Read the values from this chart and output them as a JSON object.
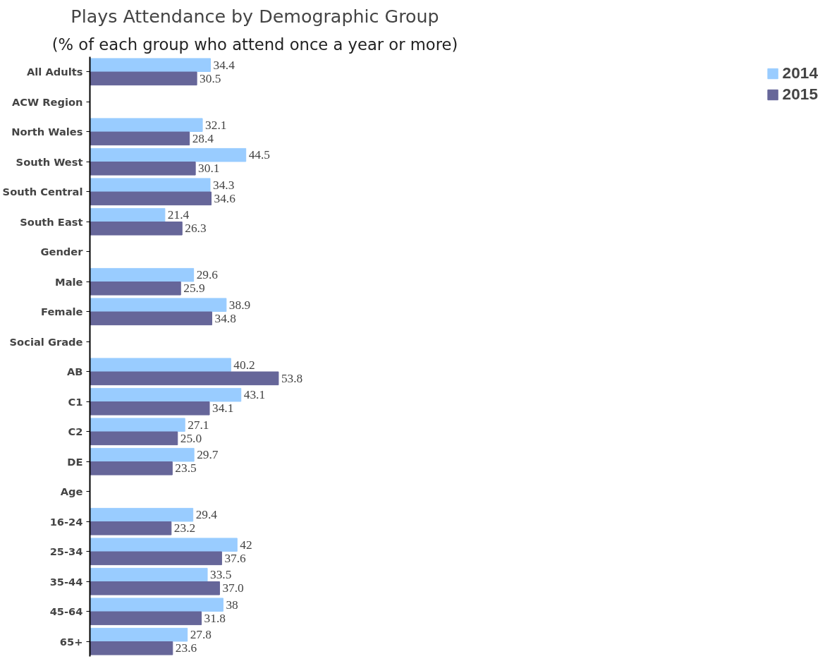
{
  "chart_data": {
    "type": "bar",
    "orientation": "horizontal",
    "title": "Plays Attendance by Demographic Group",
    "subtitle": "(% of each group who attend once a year or more)",
    "categories": [
      "All Adults",
      "ACW Region",
      "North Wales",
      "South West",
      "South Central",
      "South East",
      "Gender",
      "Male",
      "Female",
      "Social Grade",
      "AB",
      "C1",
      "C2",
      "DE",
      "Age",
      "16-24",
      "25-34",
      "35-44",
      "45-64",
      "65+"
    ],
    "series": [
      {
        "name": "2014",
        "color": "#99ccff",
        "values": [
          34.4,
          null,
          32.1,
          44.5,
          34.3,
          21.4,
          null,
          29.6,
          38.9,
          null,
          40.2,
          43.1,
          27.1,
          29.7,
          null,
          29.4,
          42,
          33.5,
          38,
          27.8
        ],
        "value_labels": [
          "34.4",
          null,
          "32.1",
          "44.5",
          "34.3",
          "21.4",
          null,
          "29.6",
          "38.9",
          null,
          "40.2",
          "43.1",
          "27.1",
          "29.7",
          null,
          "29.4",
          "42",
          "33.5",
          "38",
          "27.8"
        ]
      },
      {
        "name": "2015",
        "color": "#666699",
        "values": [
          30.5,
          null,
          28.4,
          30.1,
          34.6,
          26.3,
          null,
          25.9,
          34.8,
          null,
          53.8,
          34.1,
          25.0,
          23.5,
          null,
          23.2,
          37.6,
          37.0,
          31.8,
          23.6
        ],
        "value_labels": [
          "30.5",
          null,
          "28.4",
          "30.1",
          "34.6",
          "26.3",
          null,
          "25.9",
          "34.8",
          null,
          "53.8",
          "34.1",
          "25.0",
          "23.5",
          null,
          "23.2",
          "37.6",
          "37.0",
          "31.8",
          "23.6"
        ]
      }
    ],
    "grid": false,
    "legend": "right"
  }
}
